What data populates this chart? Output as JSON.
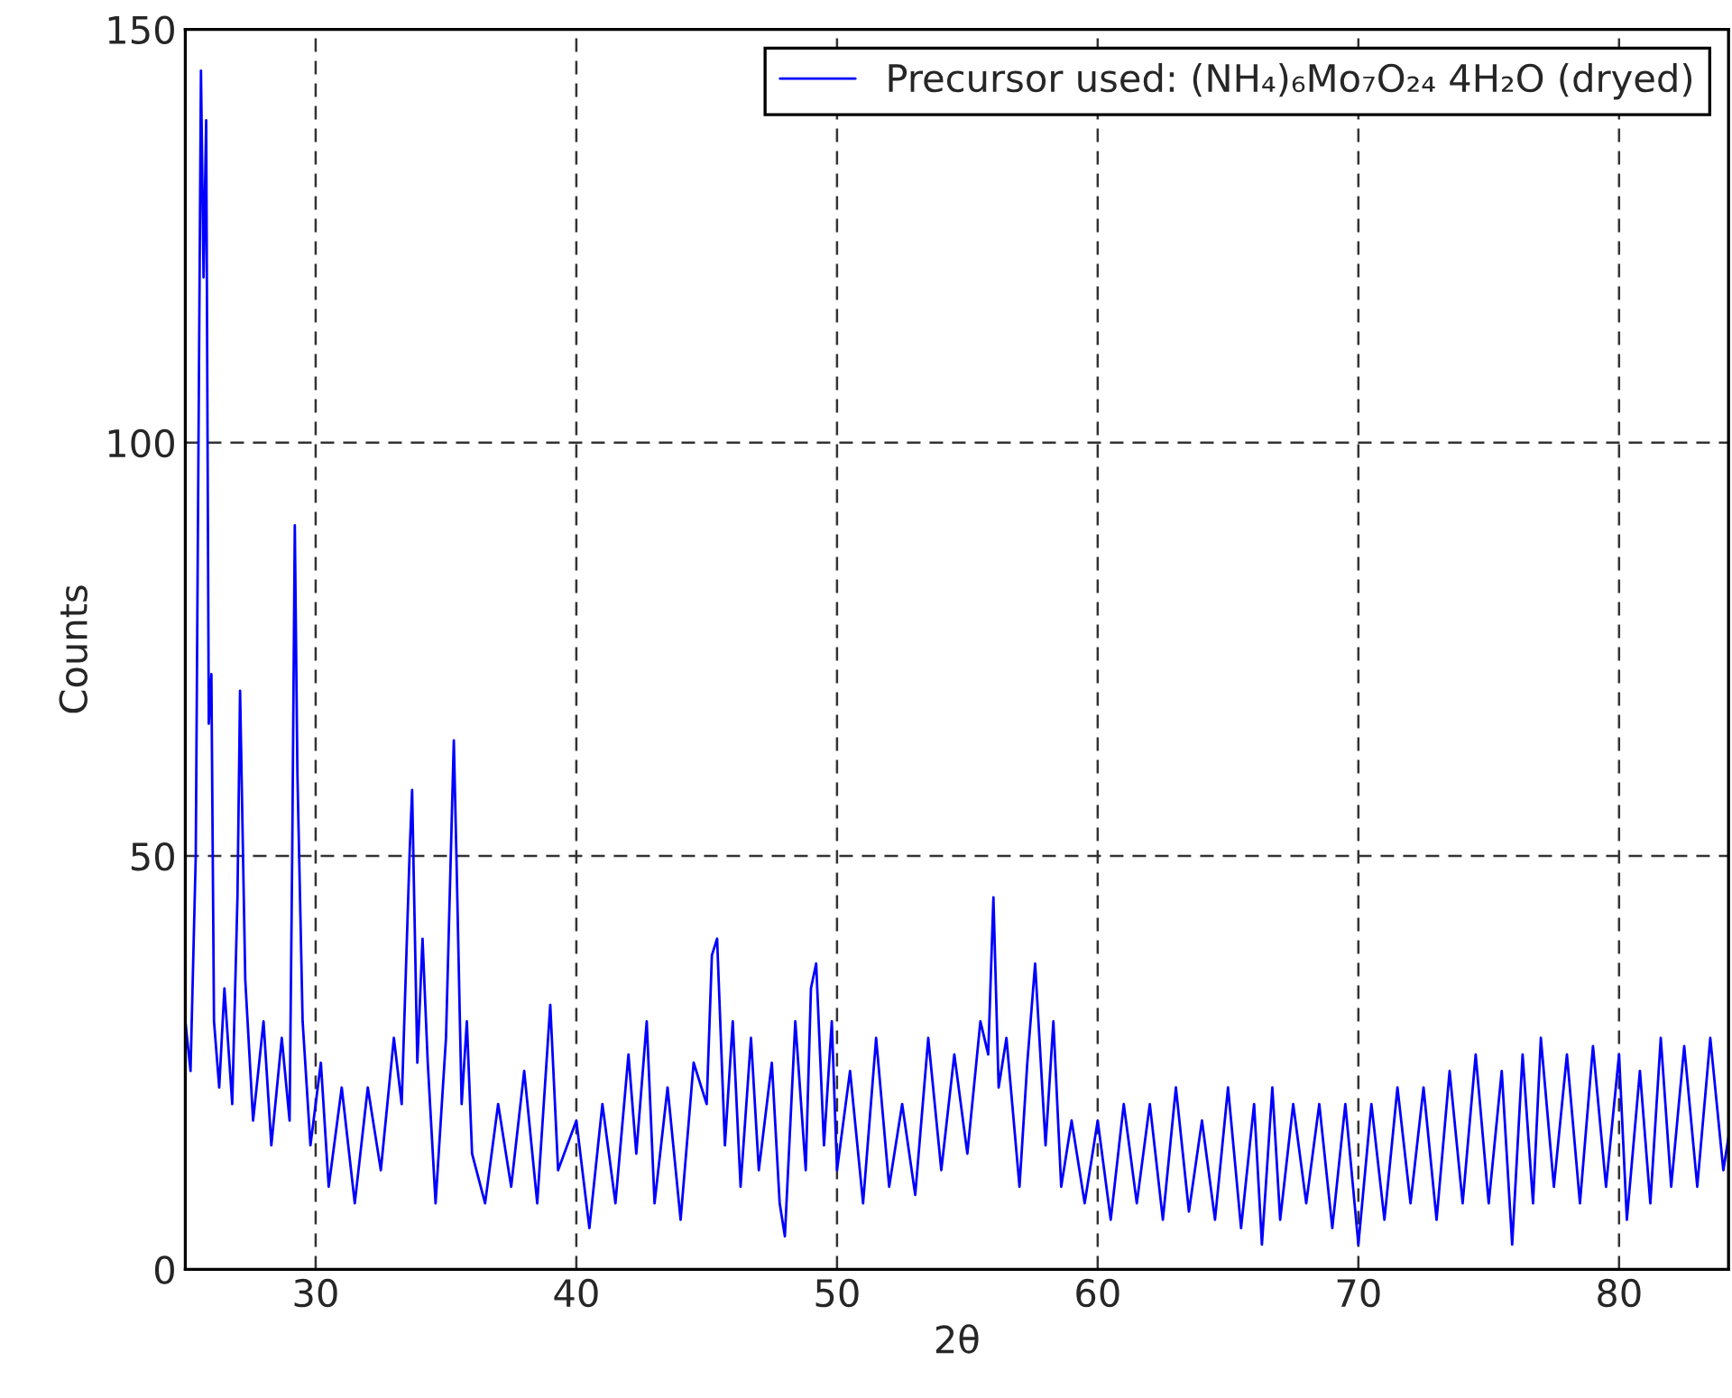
{
  "chart_data": {
    "type": "line",
    "xlabel": "2θ",
    "ylabel": "Counts",
    "xlim": [
      25,
      84.2
    ],
    "xticks": [
      30,
      40,
      50,
      60,
      70,
      80
    ],
    "ylim": [
      0,
      150
    ],
    "yticks": [
      0,
      50,
      100,
      150
    ],
    "grid": true,
    "legend": "top right",
    "line_style": "solid",
    "marker": "none",
    "series": [
      {
        "name": "Precursor used: (NH₄)₆Mo₇O₂₄ 4H₂O (dryed)",
        "color": "#0000ff",
        "x": [
          25.0,
          25.2,
          25.4,
          25.6,
          25.7,
          25.8,
          25.9,
          26.0,
          26.1,
          26.3,
          26.5,
          26.8,
          27.0,
          27.1,
          27.3,
          27.6,
          28.0,
          28.3,
          28.7,
          29.0,
          29.1,
          29.2,
          29.3,
          29.5,
          29.8,
          30.2,
          30.5,
          31.0,
          31.5,
          32.0,
          32.5,
          33.0,
          33.3,
          33.6,
          33.7,
          33.9,
          34.1,
          34.3,
          34.6,
          35.0,
          35.2,
          35.3,
          35.4,
          35.6,
          35.8,
          36.0,
          36.5,
          37.0,
          37.5,
          38.0,
          38.5,
          39.0,
          39.3,
          40.0,
          40.5,
          41.0,
          41.5,
          42.0,
          42.3,
          42.7,
          43.0,
          43.5,
          44.0,
          44.5,
          45.0,
          45.2,
          45.4,
          45.7,
          46.0,
          46.3,
          46.7,
          47.0,
          47.5,
          47.8,
          48.0,
          48.4,
          48.8,
          49.0,
          49.2,
          49.5,
          49.8,
          50.0,
          50.5,
          51.0,
          51.5,
          52.0,
          52.5,
          53.0,
          53.5,
          54.0,
          54.5,
          55.0,
          55.5,
          55.8,
          56.0,
          56.2,
          56.5,
          57.0,
          57.3,
          57.6,
          58.0,
          58.3,
          58.6,
          59.0,
          59.5,
          60.0,
          60.5,
          61.0,
          61.5,
          62.0,
          62.5,
          63.0,
          63.5,
          64.0,
          64.5,
          65.0,
          65.5,
          66.0,
          66.3,
          66.7,
          67.0,
          67.5,
          68.0,
          68.5,
          69.0,
          69.5,
          70.0,
          70.5,
          71.0,
          71.5,
          72.0,
          72.5,
          73.0,
          73.5,
          74.0,
          74.5,
          75.0,
          75.5,
          75.9,
          76.3,
          76.7,
          77.0,
          77.5,
          78.0,
          78.5,
          79.0,
          79.5,
          80.0,
          80.3,
          80.8,
          81.2,
          81.6,
          82.0,
          82.5,
          83.0,
          83.5,
          84.0,
          84.2
        ],
        "values": [
          30,
          24,
          50,
          145,
          120,
          139,
          66,
          72,
          30,
          22,
          34,
          20,
          45,
          70,
          35,
          18,
          30,
          15,
          28,
          18,
          50,
          90,
          60,
          30,
          15,
          25,
          10,
          22,
          8,
          22,
          12,
          28,
          20,
          50,
          58,
          25,
          40,
          25,
          8,
          28,
          52,
          64,
          50,
          20,
          30,
          14,
          8,
          20,
          10,
          24,
          8,
          32,
          12,
          18,
          5,
          20,
          8,
          26,
          14,
          30,
          8,
          22,
          6,
          25,
          20,
          38,
          40,
          15,
          30,
          10,
          28,
          12,
          25,
          8,
          4,
          30,
          12,
          34,
          37,
          15,
          30,
          12,
          24,
          8,
          28,
          10,
          20,
          9,
          28,
          12,
          26,
          14,
          30,
          26,
          45,
          22,
          28,
          10,
          25,
          37,
          15,
          30,
          10,
          18,
          8,
          18,
          6,
          20,
          8,
          20,
          6,
          22,
          7,
          18,
          6,
          22,
          5,
          20,
          3,
          22,
          6,
          20,
          8,
          20,
          5,
          20,
          3,
          20,
          6,
          22,
          8,
          22,
          6,
          24,
          8,
          26,
          8,
          24,
          3,
          26,
          8,
          28,
          10,
          26,
          8,
          27,
          10,
          26,
          6,
          24,
          8,
          28,
          10,
          27,
          10,
          28,
          12,
          16
        ]
      }
    ]
  }
}
